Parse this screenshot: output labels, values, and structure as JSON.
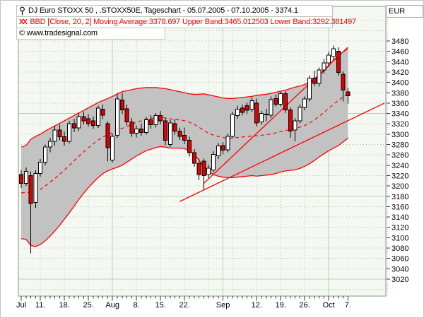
{
  "header": {
    "title": "DJ Euro STOXX 50 , .STOXX50E, Tageschart - 05.07.2005 - 07.10.2005 - 3374.1",
    "indicator_icon": "XX",
    "indicator_line": "BBD [Close, 20, 2] Moving Average:3378.697 Upper Band:3465.012503 Lower Band:3292.381497",
    "copyright": "© www.tradesignal.com",
    "currency_label": "EUR"
  },
  "axis": {
    "y_ticks": [
      3480,
      3460,
      3440,
      3420,
      3400,
      3380,
      3360,
      3340,
      3320,
      3300,
      3280,
      3260,
      3240,
      3220,
      3200,
      3180,
      3160,
      3140,
      3120,
      3100,
      3080,
      3060,
      3040,
      3020
    ],
    "x_labels": [
      {
        "label": "Jul",
        "index": 0
      },
      {
        "label": "11.",
        "index": 4
      },
      {
        "label": "18.",
        "index": 9
      },
      {
        "label": "25.",
        "index": 14
      },
      {
        "label": "Aug",
        "index": 19
      },
      {
        "label": "8.",
        "index": 24
      },
      {
        "label": "15.",
        "index": 29
      },
      {
        "label": "22.",
        "index": 34
      },
      {
        "label": "Sep",
        "index": 42
      },
      {
        "label": "12.",
        "index": 49
      },
      {
        "label": "19.",
        "index": 54
      },
      {
        "label": "26.",
        "index": 59
      },
      {
        "label": "Oct",
        "index": 64
      },
      {
        "label": "7.",
        "index": 68
      }
    ]
  },
  "chart_data": {
    "type": "candlestick",
    "instrument": "DJ Euro STOXX 50",
    "period": "05.07.2005 - 07.10.2005",
    "last_value": 3374.1,
    "ylim": [
      3000,
      3500
    ],
    "indicator": {
      "name": "BBD",
      "source": "Close",
      "length": 20,
      "deviation": 2,
      "moving_average": 3378.697,
      "upper_band": 3465.012503,
      "lower_band": 3292.381497
    },
    "dates": [
      "05.07",
      "06.07",
      "07.07",
      "08.07",
      "11.07",
      "12.07",
      "13.07",
      "14.07",
      "15.07",
      "18.07",
      "19.07",
      "20.07",
      "21.07",
      "22.07",
      "25.07",
      "26.07",
      "27.07",
      "28.07",
      "29.07",
      "01.08",
      "02.08",
      "03.08",
      "04.08",
      "05.08",
      "08.08",
      "09.08",
      "10.08",
      "11.08",
      "12.08",
      "15.08",
      "16.08",
      "17.08",
      "18.08",
      "19.08",
      "22.08",
      "23.08",
      "24.08",
      "25.08",
      "26.08",
      "29.08",
      "30.08",
      "31.08",
      "01.09",
      "02.09",
      "05.09",
      "06.09",
      "07.09",
      "08.09",
      "09.09",
      "12.09",
      "13.09",
      "14.09",
      "15.09",
      "16.09",
      "19.09",
      "20.09",
      "21.09",
      "22.09",
      "23.09",
      "26.09",
      "27.09",
      "28.09",
      "29.09",
      "30.09",
      "03.10",
      "04.10",
      "05.10",
      "06.10",
      "07.10"
    ],
    "ohlc": [
      [
        3222,
        3230,
        3196,
        3205
      ],
      [
        3205,
        3236,
        3200,
        3228
      ],
      [
        3220,
        3228,
        3070,
        3166
      ],
      [
        3168,
        3230,
        3158,
        3224
      ],
      [
        3224,
        3252,
        3218,
        3246
      ],
      [
        3246,
        3280,
        3240,
        3275
      ],
      [
        3275,
        3293,
        3265,
        3286
      ],
      [
        3286,
        3316,
        3278,
        3308
      ],
      [
        3308,
        3318,
        3288,
        3295
      ],
      [
        3295,
        3305,
        3278,
        3286
      ],
      [
        3286,
        3326,
        3282,
        3320
      ],
      [
        3320,
        3330,
        3304,
        3312
      ],
      [
        3312,
        3341,
        3306,
        3334
      ],
      [
        3334,
        3343,
        3319,
        3326
      ],
      [
        3330,
        3339,
        3314,
        3320
      ],
      [
        3326,
        3334,
        3310,
        3317
      ],
      [
        3317,
        3355,
        3312,
        3350
      ],
      [
        3348,
        3357,
        3329,
        3337
      ],
      [
        3320,
        3325,
        3247,
        3274
      ],
      [
        3250,
        3301,
        3245,
        3296
      ],
      [
        3298,
        3377,
        3293,
        3368
      ],
      [
        3366,
        3379,
        3339,
        3347
      ],
      [
        3349,
        3357,
        3317,
        3324
      ],
      [
        3324,
        3331,
        3295,
        3302
      ],
      [
        3302,
        3317,
        3294,
        3310
      ],
      [
        3310,
        3321,
        3297,
        3303
      ],
      [
        3303,
        3333,
        3299,
        3328
      ],
      [
        3328,
        3337,
        3311,
        3318
      ],
      [
        3318,
        3341,
        3313,
        3336
      ],
      [
        3336,
        3345,
        3319,
        3326
      ],
      [
        3326,
        3331,
        3279,
        3288
      ],
      [
        3280,
        3327,
        3275,
        3322
      ],
      [
        3320,
        3329,
        3299,
        3306
      ],
      [
        3306,
        3313,
        3289,
        3296
      ],
      [
        3298,
        3313,
        3281,
        3288
      ],
      [
        3288,
        3295,
        3257,
        3264
      ],
      [
        3264,
        3271,
        3237,
        3244
      ],
      [
        3244,
        3253,
        3211,
        3222
      ],
      [
        3248,
        3253,
        3192,
        3220
      ],
      [
        3222,
        3241,
        3215,
        3234
      ],
      [
        3231,
        3267,
        3226,
        3261
      ],
      [
        3258,
        3283,
        3252,
        3277
      ],
      [
        3278,
        3285,
        3261,
        3269
      ],
      [
        3270,
        3301,
        3265,
        3296
      ],
      [
        3296,
        3343,
        3292,
        3338
      ],
      [
        3336,
        3355,
        3330,
        3348
      ],
      [
        3350,
        3357,
        3336,
        3342
      ],
      [
        3355,
        3361,
        3339,
        3346
      ],
      [
        3348,
        3371,
        3343,
        3365
      ],
      [
        3360,
        3369,
        3315,
        3322
      ],
      [
        3324,
        3345,
        3318,
        3340
      ],
      [
        3338,
        3349,
        3325,
        3339
      ],
      [
        3337,
        3373,
        3331,
        3367
      ],
      [
        3369,
        3377,
        3353,
        3358
      ],
      [
        3358,
        3382,
        3354,
        3378
      ],
      [
        3378,
        3383,
        3341,
        3347
      ],
      [
        3347,
        3352,
        3293,
        3306
      ],
      [
        3308,
        3331,
        3286,
        3326
      ],
      [
        3326,
        3357,
        3321,
        3352
      ],
      [
        3352,
        3373,
        3346,
        3368
      ],
      [
        3368,
        3413,
        3363,
        3408
      ],
      [
        3408,
        3423,
        3393,
        3398
      ],
      [
        3398,
        3429,
        3392,
        3424
      ],
      [
        3424,
        3445,
        3417,
        3438
      ],
      [
        3438,
        3459,
        3430,
        3453
      ],
      [
        3450,
        3471,
        3444,
        3465
      ],
      [
        3460,
        3468,
        3413,
        3419
      ],
      [
        3416,
        3421,
        3363,
        3385
      ],
      [
        3382,
        3389,
        3359,
        3374.1
      ]
    ],
    "bollinger_upper": [
      3275,
      3278,
      3290,
      3296,
      3300,
      3306,
      3311,
      3316,
      3321,
      3326,
      3331,
      3336,
      3341,
      3346,
      3351,
      3356,
      3361,
      3365,
      3369,
      3373,
      3378,
      3382,
      3384,
      3386,
      3388,
      3389,
      3390,
      3390,
      3390,
      3389,
      3388,
      3386,
      3384,
      3382,
      3380,
      3378,
      3377,
      3377,
      3378,
      3376,
      3374,
      3372,
      3370,
      3369,
      3369,
      3370,
      3371,
      3372,
      3373,
      3375,
      3376,
      3377,
      3379,
      3381,
      3383,
      3385,
      3388,
      3391,
      3393,
      3396,
      3400,
      3406,
      3413,
      3422,
      3432,
      3443,
      3452,
      3459,
      3465
    ],
    "bollinger_lower": [
      3098,
      3097,
      3085,
      3083,
      3087,
      3094,
      3103,
      3113,
      3124,
      3136,
      3148,
      3161,
      3174,
      3186,
      3197,
      3207,
      3216,
      3224,
      3229,
      3233,
      3236,
      3240,
      3246,
      3252,
      3258,
      3263,
      3268,
      3271,
      3274,
      3276,
      3275,
      3273,
      3273,
      3273,
      3272,
      3268,
      3261,
      3250,
      3236,
      3228,
      3222,
      3219,
      3217,
      3216,
      3216,
      3217,
      3218,
      3219,
      3220,
      3219,
      3220,
      3221,
      3222,
      3224,
      3227,
      3229,
      3230,
      3231,
      3234,
      3238,
      3243,
      3249,
      3256,
      3262,
      3268,
      3273,
      3278,
      3285,
      3292.4
    ],
    "trendlines": [
      {
        "from_index": 38,
        "from_price": 3205,
        "to_index": 68,
        "to_price": 3468
      },
      {
        "from_index": 33,
        "from_price": 3170,
        "to_index": 75.6,
        "to_price": 3360
      }
    ],
    "gridlines": {
      "h_green_values": [
        3340,
        3180,
        3020
      ],
      "v_green_indices": [
        19,
        42,
        64
      ],
      "v_dotted_indices": [
        4,
        9,
        14,
        24,
        29,
        34,
        39,
        44,
        49,
        54,
        59
      ]
    },
    "colors": {
      "candle_up": "#ffffff",
      "candle_down": "#e00000",
      "candle_outline": "#000000",
      "band_fill": "#c2c2c2",
      "band_line": "#ff0000",
      "ma_line": "#ff0000",
      "trend_line": "#ff0000",
      "grid_dotted": "#a9bfa9",
      "grid_green": "#a8dca8",
      "plot_bg": "#f5f8f2",
      "plot_border": "#7f9a7f",
      "indicator_text": "#ff0000"
    },
    "legend_position": "top-left",
    "grid": true
  }
}
